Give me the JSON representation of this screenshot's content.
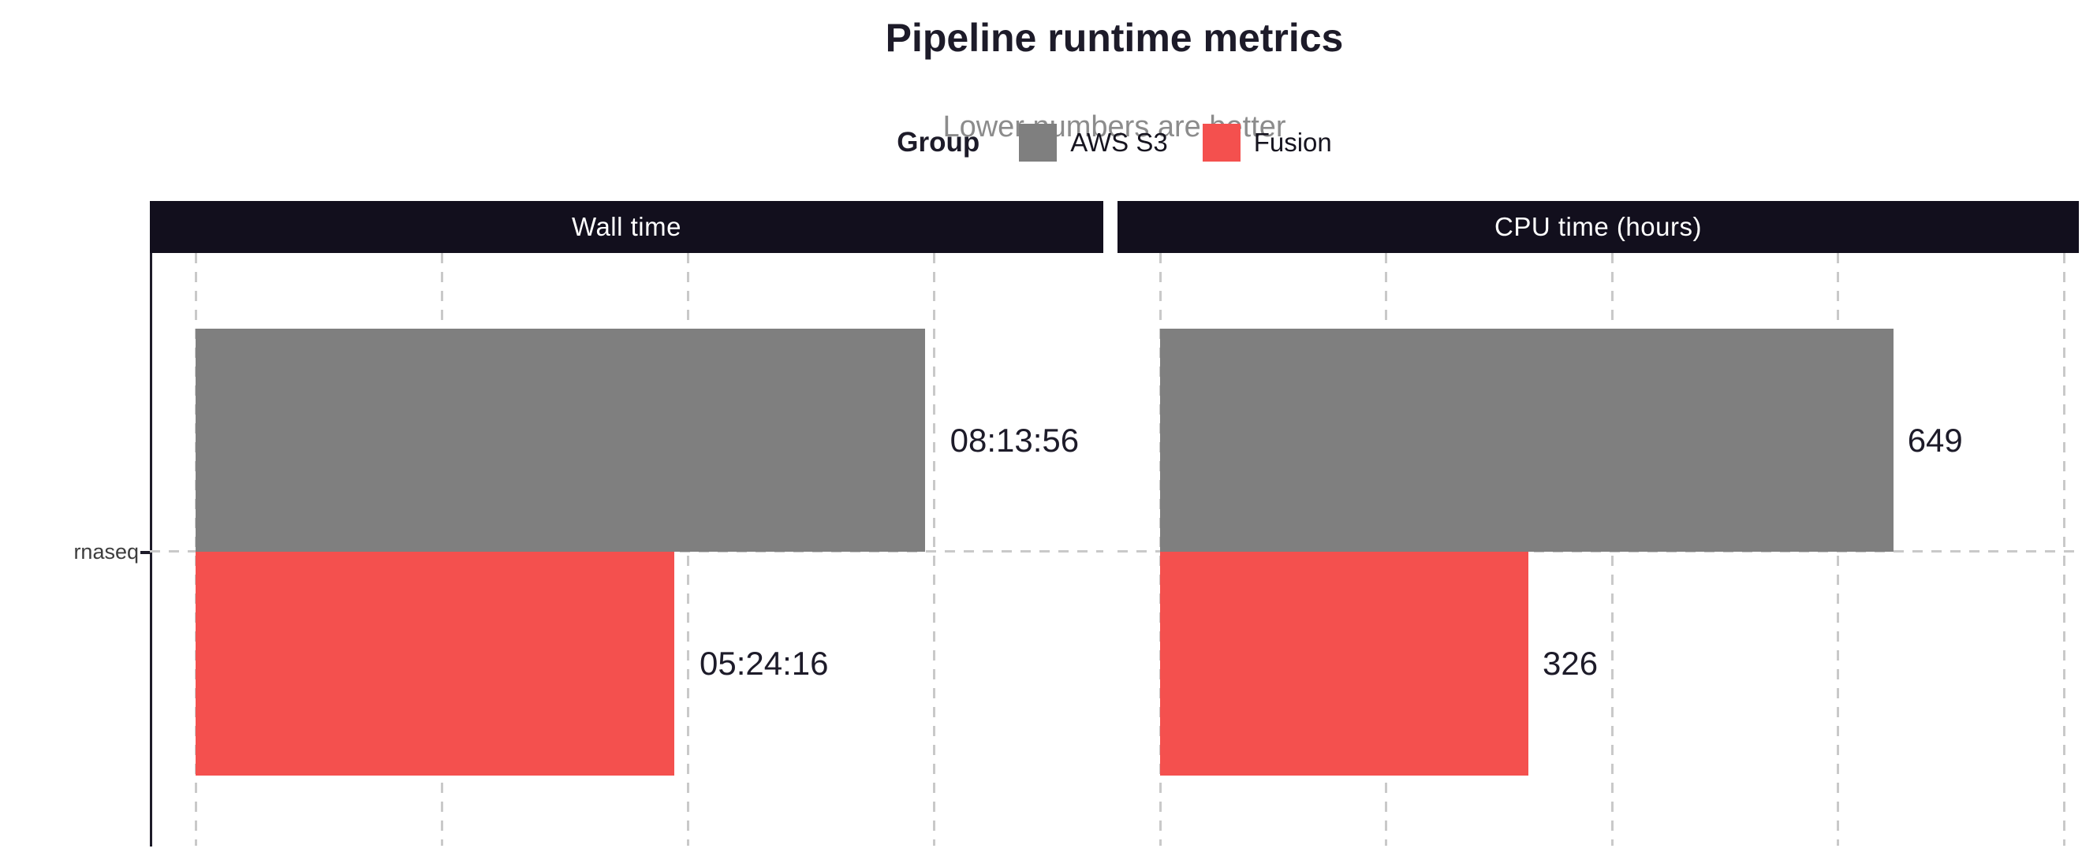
{
  "header": {
    "title": "Pipeline runtime metrics",
    "subtitle": "Lower numbers are better"
  },
  "legend": {
    "label": "Group",
    "position": "top",
    "items": [
      {
        "name": "AWS S3",
        "color": "#7f7f7f"
      },
      {
        "name": "Fusion",
        "color": "#f4504e"
      }
    ]
  },
  "y_axis": {
    "categories": [
      "rnaseq"
    ]
  },
  "chart_data": [
    {
      "type": "bar",
      "orientation": "horizontal",
      "panel_title": "Wall time",
      "categories": [
        "rnaseq"
      ],
      "unit": "seconds",
      "series": [
        {
          "name": "AWS S3",
          "values": [
            29636
          ],
          "labels": [
            "08:13:56"
          ],
          "color": "#7f7f7f"
        },
        {
          "name": "Fusion",
          "values": [
            19456
          ],
          "labels": [
            "05:24:16"
          ],
          "color": "#f4504e"
        }
      ],
      "x_gridlines": [
        0,
        10000,
        20000,
        30000
      ],
      "xlim": [
        0,
        37000
      ],
      "grid_style": "dashed"
    },
    {
      "type": "bar",
      "orientation": "horizontal",
      "panel_title": "CPU time (hours)",
      "categories": [
        "rnaseq"
      ],
      "unit": "hours",
      "series": [
        {
          "name": "AWS S3",
          "values": [
            649
          ],
          "labels": [
            "649"
          ],
          "color": "#7f7f7f"
        },
        {
          "name": "Fusion",
          "values": [
            326
          ],
          "labels": [
            "326"
          ],
          "color": "#f4504e"
        }
      ],
      "x_gridlines": [
        0,
        200,
        400,
        600,
        800
      ],
      "xlim": [
        0,
        815
      ],
      "grid_style": "dashed"
    }
  ],
  "colors": {
    "panel_header_bg": "#120f1d",
    "panel_header_text": "#ffffff",
    "gridline": "#c9c9c9",
    "axis_line": "#1d1b29",
    "title_text": "#1d1b29",
    "subtitle_text": "#8c8c8c"
  }
}
